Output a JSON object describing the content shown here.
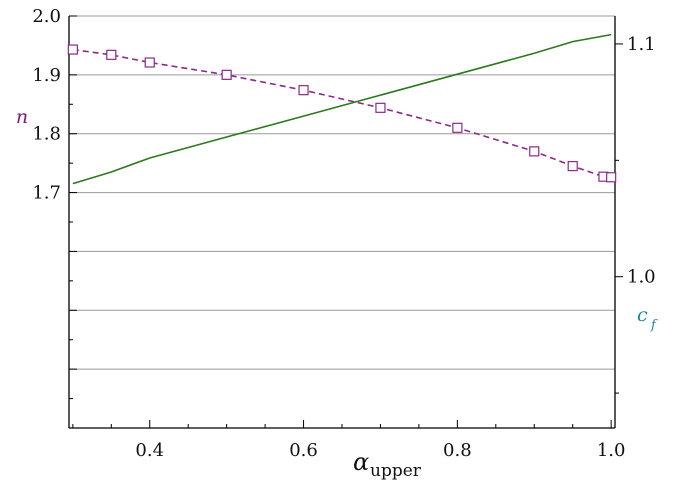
{
  "chart_data": {
    "type": "line",
    "title": "",
    "grid": "horizontal lines",
    "x_axis": {
      "label": "α",
      "label_subscript": "upper",
      "range": [
        0.295,
        1.005
      ],
      "ticks": [
        0.4,
        0.6,
        0.8,
        1.0
      ],
      "tick_labels": [
        "0.4",
        "0.6",
        "0.8",
        "1.0"
      ]
    },
    "y_left": {
      "label": "n",
      "label_color": "#7a1a7a",
      "range": [
        1.3,
        2.0
      ],
      "ticks": [
        1.7,
        1.8,
        1.9,
        2.0
      ],
      "tick_labels": [
        "1.7",
        "1.8",
        "1.9",
        "2.0"
      ]
    },
    "y_right": {
      "label": "c",
      "label_subscript": "f",
      "label_color": "#1a8a8a",
      "range": [
        0.935,
        1.112
      ],
      "ticks": [
        1.0,
        1.1
      ],
      "tick_labels": [
        "1.0",
        "1.1"
      ]
    },
    "series": [
      {
        "axis": "left",
        "style": "dashed-squares",
        "color": "#8a2a8a",
        "x": [
          0.3,
          0.35,
          0.4,
          0.5,
          0.6,
          0.7,
          0.8,
          0.9,
          0.95,
          0.99,
          1.0
        ],
        "y": [
          1.943,
          1.934,
          1.921,
          1.9,
          1.874,
          1.844,
          1.81,
          1.77,
          1.745,
          1.727,
          1.726
        ]
      },
      {
        "axis": "right",
        "style": "solid",
        "color": "#2a7a1a",
        "x": [
          0.3,
          0.35,
          0.4,
          0.5,
          0.6,
          0.7,
          0.8,
          0.9,
          0.95,
          1.0
        ],
        "y": [
          1.04,
          1.045,
          1.051,
          1.06,
          1.069,
          1.078,
          1.087,
          1.096,
          1.101,
          1.104
        ]
      }
    ]
  }
}
